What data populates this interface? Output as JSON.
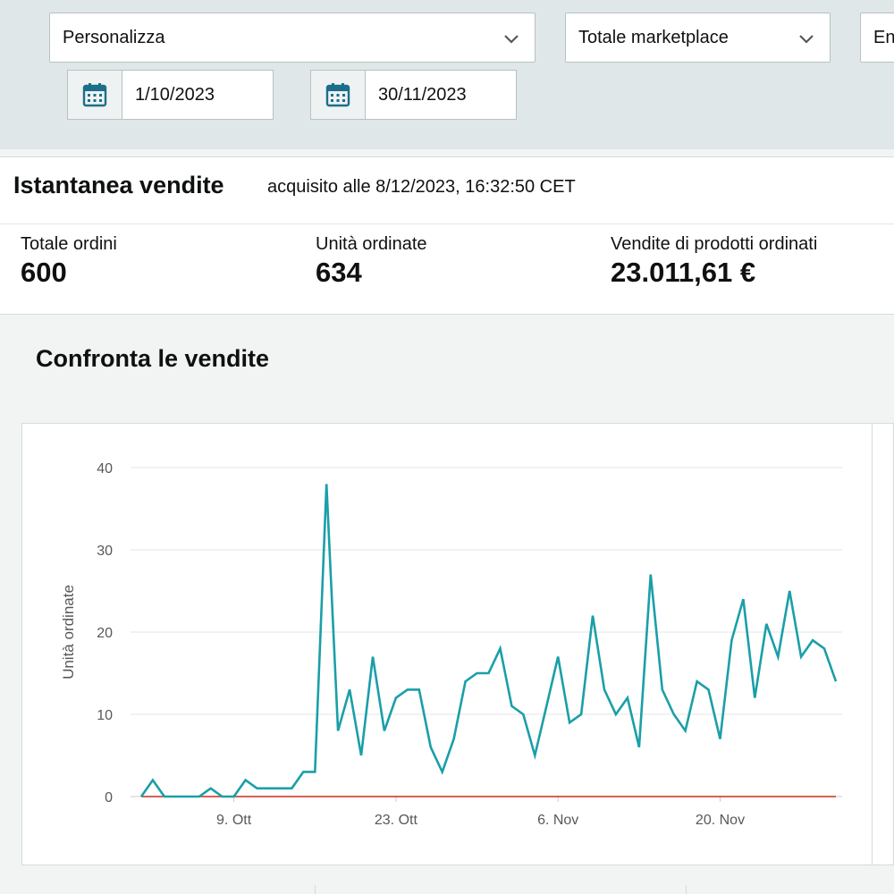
{
  "filters": {
    "period_select": "Personalizza",
    "marketplace_select": "Totale marketplace",
    "third_select": "En",
    "start_date": "1/10/2023",
    "end_date": "30/11/2023"
  },
  "snapshot": {
    "title": "Istantanea vendite",
    "captured": "acquisito alle 8/12/2023, 16:32:50 CET",
    "metrics": [
      {
        "label": "Totale ordini",
        "value": "600"
      },
      {
        "label": "Unità ordinate",
        "value": "634"
      },
      {
        "label": "Vendite di prodotti ordinati",
        "value": "23.011,61 €"
      }
    ]
  },
  "compare": {
    "title": "Confronta le vendite"
  },
  "colors": {
    "series_current": "#1a9fa8",
    "series_baseline": "#cc2b1d",
    "grid": "#e3e6e6"
  },
  "chart_data": {
    "type": "line",
    "ylabel": "Unità ordinate",
    "xlabel": "",
    "ylim": [
      0,
      40
    ],
    "yticks": [
      "0",
      "10",
      "20",
      "30",
      "40"
    ],
    "xticks": [
      {
        "label": "9. Ott",
        "day": 9
      },
      {
        "label": "23. Ott",
        "day": 23
      },
      {
        "label": "6. Nov",
        "day": 37
      },
      {
        "label": "20. Nov",
        "day": 51
      }
    ],
    "x_start": "1/10/2023",
    "x_end": "30/11/2023",
    "grid": true,
    "series": [
      {
        "values": [
          0,
          2,
          0,
          0,
          0,
          0,
          1,
          0,
          0,
          2,
          1,
          1,
          1,
          1,
          3,
          3,
          38,
          8,
          13,
          5,
          17,
          8,
          12,
          13,
          13,
          6,
          3,
          7,
          14,
          15,
          15,
          18,
          11,
          10,
          5,
          11,
          17,
          9,
          10,
          22,
          13,
          10,
          12,
          6,
          27,
          13,
          10,
          8,
          14,
          13,
          7,
          19,
          24,
          12,
          21,
          17,
          25,
          17,
          19,
          18,
          14
        ]
      },
      {
        "values": [
          0,
          0,
          0,
          0,
          0,
          0,
          0,
          0,
          0,
          0,
          0,
          0,
          0,
          0,
          0,
          0,
          0,
          0,
          0,
          0,
          0,
          0,
          0,
          0,
          0,
          0,
          0,
          0,
          0,
          0,
          0,
          0,
          0,
          0,
          0,
          0,
          0,
          0,
          0,
          0,
          0,
          0,
          0,
          0,
          0,
          0,
          0,
          0,
          0,
          0,
          0,
          0,
          0,
          0,
          0,
          0,
          0,
          0,
          0,
          0,
          0
        ]
      }
    ]
  }
}
